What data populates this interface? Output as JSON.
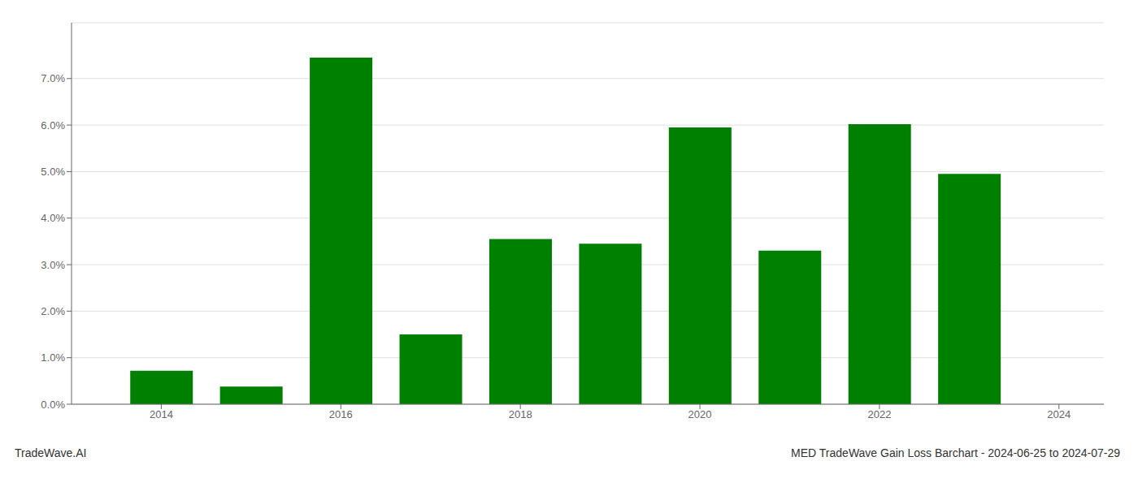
{
  "chart_data": {
    "type": "bar",
    "x": [
      2014,
      2015,
      2016,
      2017,
      2018,
      2019,
      2020,
      2021,
      2022,
      2023
    ],
    "values": [
      0.0072,
      0.0038,
      0.0745,
      0.015,
      0.0355,
      0.0345,
      0.0595,
      0.033,
      0.0602,
      0.0495
    ],
    "color": "#008000",
    "xlim": [
      2013.0,
      2024.5
    ],
    "xticks": [
      2014,
      2016,
      2018,
      2020,
      2022,
      2024
    ],
    "ylim": [
      0,
      0.082
    ],
    "yticks": [
      {
        "value": 0.0,
        "label": "0.0%"
      },
      {
        "value": 0.01,
        "label": "1.0%"
      },
      {
        "value": 0.02,
        "label": "2.0%"
      },
      {
        "value": 0.03,
        "label": "3.0%"
      },
      {
        "value": 0.04,
        "label": "4.0%"
      },
      {
        "value": 0.05,
        "label": "5.0%"
      },
      {
        "value": 0.06,
        "label": "6.0%"
      },
      {
        "value": 0.07,
        "label": "7.0%"
      }
    ],
    "grid": "y",
    "annotations": [
      "TradeWave.AI",
      "MED TradeWave Gain Loss Barchart - 2024-06-25 to 2024-07-29"
    ]
  }
}
